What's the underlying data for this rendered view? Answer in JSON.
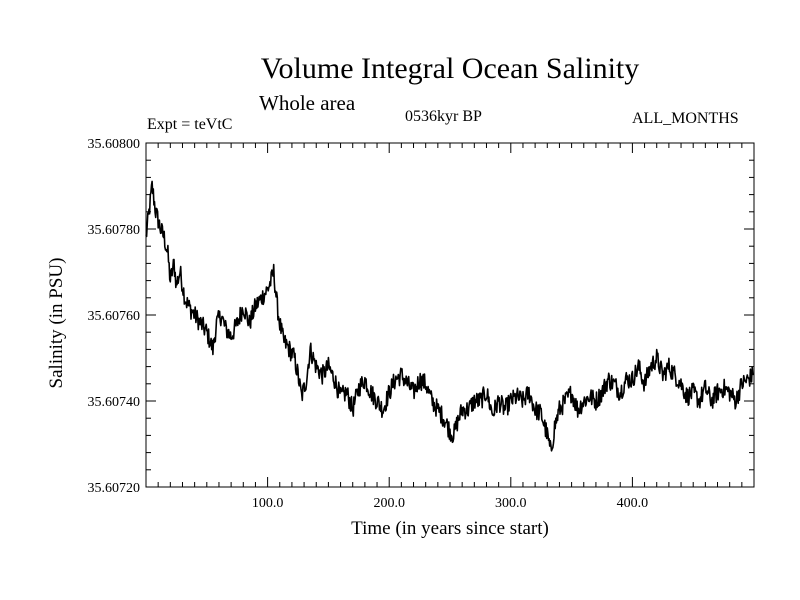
{
  "header": {
    "title": "Volume Integral Ocean Salinity",
    "subtitle": "Whole area",
    "experiment": "Expt = teVtC",
    "period": "0536kyr BP",
    "months": "ALL_MONTHS"
  },
  "chart_data": {
    "type": "line",
    "title": "Volume Integral Ocean Salinity",
    "subtitle": "Whole area",
    "xlabel": "Time (in years since start)",
    "ylabel": "Salinity (in PSU)",
    "xlim": [
      0,
      500
    ],
    "ylim": [
      35.6072,
      35.608
    ],
    "x_ticks": [
      100,
      200,
      300,
      400
    ],
    "x_tick_labels": [
      "100.0",
      "200.0",
      "300.0",
      "400.0"
    ],
    "y_ticks": [
      35.6072,
      35.6074,
      35.6076,
      35.6078,
      35.608
    ],
    "y_tick_labels": [
      "35.60720",
      "35.60740",
      "35.60760",
      "35.60780",
      "35.60800"
    ],
    "grid": false,
    "series": [
      {
        "name": "Salinity",
        "x": [
          0,
          3,
          5,
          8,
          12,
          15,
          18,
          20,
          23,
          25,
          28,
          32,
          35,
          40,
          45,
          50,
          55,
          58,
          62,
          65,
          70,
          75,
          80,
          85,
          90,
          95,
          100,
          103,
          105,
          108,
          110,
          113,
          118,
          122,
          125,
          128,
          132,
          135,
          140,
          145,
          150,
          155,
          160,
          165,
          170,
          175,
          180,
          185,
          190,
          195,
          200,
          205,
          210,
          215,
          220,
          225,
          230,
          235,
          240,
          245,
          250,
          253,
          256,
          260,
          265,
          270,
          275,
          280,
          285,
          290,
          295,
          300,
          305,
          310,
          315,
          320,
          325,
          330,
          333,
          336,
          340,
          345,
          350,
          355,
          360,
          365,
          370,
          375,
          380,
          385,
          390,
          395,
          400,
          405,
          410,
          415,
          420,
          425,
          430,
          435,
          440,
          445,
          450,
          455,
          460,
          465,
          470,
          475,
          480,
          485,
          490,
          495,
          499
        ],
        "values": [
          35.60778,
          35.60785,
          35.6079,
          35.60784,
          35.6078,
          35.60778,
          35.60774,
          35.60768,
          35.60772,
          35.60767,
          35.6077,
          35.60764,
          35.60762,
          35.6076,
          35.60758,
          35.60756,
          35.60752,
          35.60758,
          35.6076,
          35.60757,
          35.60755,
          35.60758,
          35.60762,
          35.60758,
          35.60762,
          35.60764,
          35.60766,
          35.60768,
          35.6077,
          35.60762,
          35.60758,
          35.60754,
          35.60752,
          35.6075,
          35.60746,
          35.60741,
          35.60745,
          35.60752,
          35.60748,
          35.60746,
          35.60748,
          35.60745,
          35.60741,
          35.60742,
          35.60738,
          35.60743,
          35.60745,
          35.60742,
          35.6074,
          35.60738,
          35.60742,
          35.60745,
          35.60746,
          35.60744,
          35.60742,
          35.60745,
          35.60744,
          35.6074,
          35.60738,
          35.60736,
          35.60733,
          35.60732,
          35.60735,
          35.60738,
          35.60738,
          35.6074,
          35.6074,
          35.60742,
          35.60737,
          35.6074,
          35.60738,
          35.6074,
          35.60741,
          35.6074,
          35.60742,
          35.60738,
          35.60737,
          35.60732,
          35.60728,
          35.60734,
          35.60738,
          35.6074,
          35.60742,
          35.60738,
          35.6074,
          35.60741,
          35.6074,
          35.60742,
          35.60745,
          35.60744,
          35.60742,
          35.60745,
          35.60745,
          35.60748,
          35.60744,
          35.60748,
          35.6075,
          35.60746,
          35.60748,
          35.60746,
          35.60744,
          35.60741,
          35.60742,
          35.6074,
          35.60743,
          35.6074,
          35.60742,
          35.60743,
          35.60742,
          35.6074,
          35.60744,
          35.60745,
          35.60746
        ]
      }
    ]
  }
}
